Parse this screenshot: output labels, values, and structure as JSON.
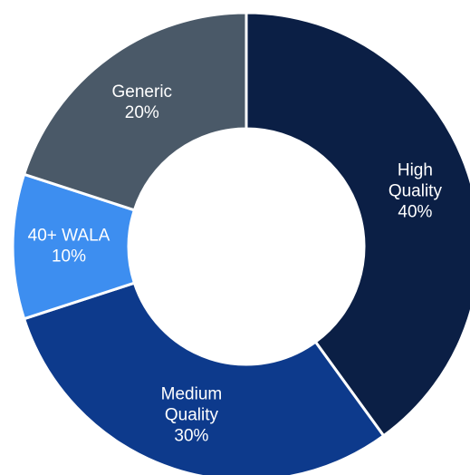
{
  "chart_data": {
    "type": "pie",
    "title": "",
    "style": "donut",
    "start_angle_deg": 0,
    "direction": "clockwise",
    "slices": [
      {
        "label": [
          "High",
          "Quality",
          "40%"
        ],
        "value": 40,
        "color": "#0b1f45"
      },
      {
        "label": [
          "Medium",
          "Quality",
          "30%"
        ],
        "value": 30,
        "color": "#0d3a8c"
      },
      {
        "label": [
          "40+ WALA",
          "10%"
        ],
        "value": 10,
        "color": "#3d8ef0"
      },
      {
        "label": [
          "Generic",
          "20%"
        ],
        "value": 20,
        "color": "#4a5968"
      }
    ]
  }
}
